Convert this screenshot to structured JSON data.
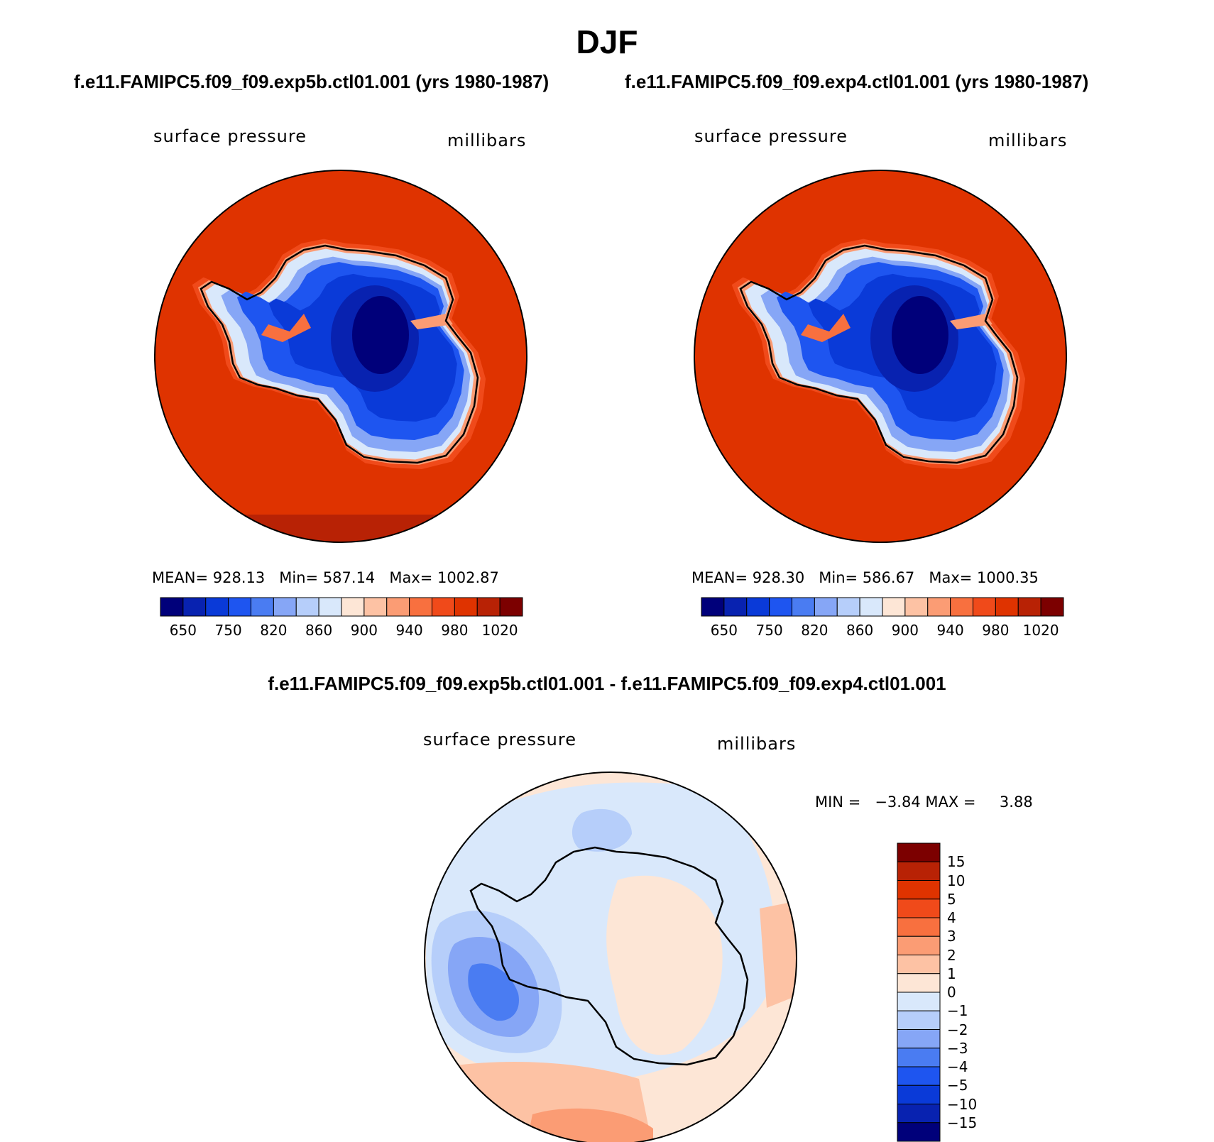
{
  "season": "DJF",
  "panels": [
    {
      "case_title": "f.e11.FAMIPC5.f09_f09.exp5b.ctl01.001 (yrs 1980-1987)",
      "variable": "surface  pressure",
      "units": "millibars",
      "stats": {
        "mean": "928.13",
        "min": "587.14",
        "max": "1002.87"
      },
      "legend_ticks": [
        "650",
        "750",
        "820",
        "860",
        "900",
        "940",
        "980",
        "1020"
      ]
    },
    {
      "case_title": "f.e11.FAMIPC5.f09_f09.exp4.ctl01.001 (yrs 1980-1987)",
      "variable": "surface  pressure",
      "units": "millibars",
      "stats": {
        "mean": "928.30",
        "min": "586.67",
        "max": "1000.35"
      },
      "legend_ticks": [
        "650",
        "750",
        "820",
        "860",
        "900",
        "940",
        "980",
        "1020"
      ]
    }
  ],
  "stat_labels": {
    "mean": "MEAN=",
    "min": "Min=",
    "max": "Max="
  },
  "difference": {
    "title": "f.e11.FAMIPC5.f09_f09.exp5b.ctl01.001 - f.e11.FAMIPC5.f09_f09.exp4.ctl01.001",
    "variable": "surface  pressure",
    "units": "millibars",
    "min_label": "MIN =",
    "min_value": "−3.84",
    "max_label": "MAX =",
    "max_value": "3.88",
    "legend_ticks": [
      "15",
      "10",
      "5",
      "4",
      "3",
      "2",
      "1",
      "0",
      "−1",
      "−2",
      "−3",
      "−4",
      "−5",
      "−10",
      "−15"
    ]
  },
  "colors": {
    "abs_scale": [
      "#00007a",
      "#0822b0",
      "#0a3ad8",
      "#1e55f0",
      "#4a7cf2",
      "#86a6f6",
      "#b6cefa",
      "#d9e8fb",
      "#fde6d6",
      "#fdc2a4",
      "#fb9c74",
      "#f8703f",
      "#f04a1a",
      "#df3300",
      "#b82205",
      "#7c0000"
    ],
    "diff_scale": [
      "#00007a",
      "#0822b0",
      "#0a3ad8",
      "#1e55f0",
      "#4a7cf2",
      "#86a6f6",
      "#b6cefa",
      "#d9e8fb",
      "#fde6d6",
      "#fdc2a4",
      "#fb9c74",
      "#f8703f",
      "#f04a1a",
      "#df3300",
      "#b82205",
      "#7c0000"
    ],
    "ocean": "#df3300",
    "coast": "#000000"
  }
}
